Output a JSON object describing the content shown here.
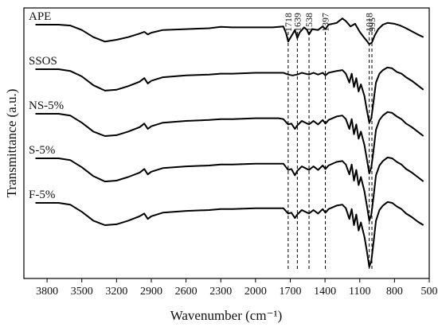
{
  "chart_data": {
    "type": "line",
    "xlabel": "Wavenumber (cm⁻¹)",
    "ylabel": "Transmittance (a.u.)",
    "xlim": [
      4000,
      500
    ],
    "x_reversed": true,
    "y_tick_labels": "none",
    "xticks": [
      3800,
      3500,
      3200,
      2900,
      2600,
      2300,
      2000,
      1700,
      1400,
      1100,
      800,
      500
    ],
    "peak_markers": [
      {
        "x": 1718,
        "label": "1718"
      },
      {
        "x": 1639,
        "label": "1639"
      },
      {
        "x": 1538,
        "label": "1538"
      },
      {
        "x": 1397,
        "label": "1397"
      },
      {
        "x": 1018,
        "label": "1018"
      },
      {
        "x": 995,
        "label": "995"
      }
    ],
    "series": [
      {
        "name": "APE",
        "offset": 4.0,
        "points": [
          [
            3900,
            0.0
          ],
          [
            3700,
            0.0
          ],
          [
            3600,
            -0.02
          ],
          [
            3500,
            -0.12
          ],
          [
            3400,
            -0.28
          ],
          [
            3300,
            -0.38
          ],
          [
            3200,
            -0.34
          ],
          [
            3100,
            -0.28
          ],
          [
            3000,
            -0.2
          ],
          [
            2960,
            -0.16
          ],
          [
            2930,
            -0.22
          ],
          [
            2900,
            -0.18
          ],
          [
            2800,
            -0.12
          ],
          [
            2600,
            -0.1
          ],
          [
            2400,
            -0.08
          ],
          [
            2300,
            -0.05
          ],
          [
            2200,
            -0.06
          ],
          [
            2000,
            -0.06
          ],
          [
            1850,
            -0.06
          ],
          [
            1760,
            -0.04
          ],
          [
            1735,
            -0.2
          ],
          [
            1718,
            -0.38
          ],
          [
            1700,
            -0.3
          ],
          [
            1660,
            -0.12
          ],
          [
            1639,
            -0.3
          ],
          [
            1620,
            -0.18
          ],
          [
            1580,
            -0.06
          ],
          [
            1555,
            -0.12
          ],
          [
            1538,
            -0.22
          ],
          [
            1510,
            -0.1
          ],
          [
            1460,
            -0.12
          ],
          [
            1420,
            -0.04
          ],
          [
            1397,
            -0.1
          ],
          [
            1370,
            0.0
          ],
          [
            1300,
            0.04
          ],
          [
            1250,
            0.14
          ],
          [
            1220,
            0.08
          ],
          [
            1180,
            -0.04
          ],
          [
            1140,
            0.02
          ],
          [
            1100,
            -0.16
          ],
          [
            1060,
            -0.3
          ],
          [
            1040,
            -0.36
          ],
          [
            1018,
            -0.44
          ],
          [
            995,
            -0.4
          ],
          [
            970,
            -0.24
          ],
          [
            940,
            -0.1
          ],
          [
            900,
            0.0
          ],
          [
            860,
            0.04
          ],
          [
            800,
            0.02
          ],
          [
            750,
            -0.02
          ],
          [
            700,
            -0.08
          ],
          [
            600,
            -0.22
          ],
          [
            550,
            -0.28
          ]
        ]
      },
      {
        "name": "SSOS",
        "offset": 3.0,
        "points": [
          [
            3900,
            0.0
          ],
          [
            3700,
            0.0
          ],
          [
            3600,
            -0.04
          ],
          [
            3500,
            -0.16
          ],
          [
            3400,
            -0.36
          ],
          [
            3300,
            -0.48
          ],
          [
            3200,
            -0.46
          ],
          [
            3100,
            -0.38
          ],
          [
            3000,
            -0.28
          ],
          [
            2960,
            -0.2
          ],
          [
            2930,
            -0.32
          ],
          [
            2900,
            -0.26
          ],
          [
            2800,
            -0.18
          ],
          [
            2600,
            -0.14
          ],
          [
            2400,
            -0.12
          ],
          [
            2300,
            -0.1
          ],
          [
            2200,
            -0.1
          ],
          [
            2000,
            -0.08
          ],
          [
            1800,
            -0.08
          ],
          [
            1760,
            -0.08
          ],
          [
            1718,
            -0.12
          ],
          [
            1680,
            -0.14
          ],
          [
            1639,
            -0.12
          ],
          [
            1600,
            -0.08
          ],
          [
            1538,
            -0.12
          ],
          [
            1500,
            -0.08
          ],
          [
            1460,
            -0.12
          ],
          [
            1420,
            -0.08
          ],
          [
            1397,
            -0.14
          ],
          [
            1370,
            -0.08
          ],
          [
            1300,
            -0.04
          ],
          [
            1250,
            -0.02
          ],
          [
            1220,
            -0.1
          ],
          [
            1190,
            -0.3
          ],
          [
            1170,
            -0.1
          ],
          [
            1150,
            -0.4
          ],
          [
            1130,
            -0.2
          ],
          [
            1110,
            -0.5
          ],
          [
            1090,
            -0.34
          ],
          [
            1060,
            -0.6
          ],
          [
            1040,
            -0.9
          ],
          [
            1018,
            -1.2
          ],
          [
            1000,
            -1.1
          ],
          [
            980,
            -0.7
          ],
          [
            960,
            -0.3
          ],
          [
            930,
            -0.1
          ],
          [
            900,
            -0.02
          ],
          [
            860,
            0.04
          ],
          [
            820,
            0.02
          ],
          [
            780,
            -0.06
          ],
          [
            740,
            -0.1
          ],
          [
            700,
            -0.18
          ],
          [
            650,
            -0.26
          ],
          [
            600,
            -0.36
          ],
          [
            550,
            -0.46
          ]
        ]
      },
      {
        "name": "NS-5%",
        "offset": 2.0,
        "points": [
          [
            3900,
            0.0
          ],
          [
            3700,
            0.0
          ],
          [
            3600,
            -0.04
          ],
          [
            3500,
            -0.2
          ],
          [
            3400,
            -0.4
          ],
          [
            3300,
            -0.5
          ],
          [
            3200,
            -0.48
          ],
          [
            3100,
            -0.4
          ],
          [
            3000,
            -0.3
          ],
          [
            2960,
            -0.22
          ],
          [
            2930,
            -0.34
          ],
          [
            2900,
            -0.28
          ],
          [
            2800,
            -0.2
          ],
          [
            2600,
            -0.16
          ],
          [
            2400,
            -0.14
          ],
          [
            2300,
            -0.12
          ],
          [
            2200,
            -0.12
          ],
          [
            2000,
            -0.1
          ],
          [
            1800,
            -0.1
          ],
          [
            1760,
            -0.12
          ],
          [
            1718,
            -0.24
          ],
          [
            1690,
            -0.22
          ],
          [
            1660,
            -0.34
          ],
          [
            1639,
            -0.26
          ],
          [
            1600,
            -0.16
          ],
          [
            1538,
            -0.24
          ],
          [
            1500,
            -0.16
          ],
          [
            1460,
            -0.24
          ],
          [
            1420,
            -0.14
          ],
          [
            1397,
            -0.22
          ],
          [
            1370,
            -0.14
          ],
          [
            1300,
            -0.06
          ],
          [
            1250,
            -0.04
          ],
          [
            1220,
            -0.12
          ],
          [
            1190,
            -0.34
          ],
          [
            1170,
            -0.12
          ],
          [
            1150,
            -0.46
          ],
          [
            1130,
            -0.24
          ],
          [
            1110,
            -0.56
          ],
          [
            1090,
            -0.4
          ],
          [
            1060,
            -0.7
          ],
          [
            1040,
            -1.0
          ],
          [
            1018,
            -1.34
          ],
          [
            1000,
            -1.2
          ],
          [
            980,
            -0.8
          ],
          [
            960,
            -0.36
          ],
          [
            930,
            -0.14
          ],
          [
            900,
            -0.04
          ],
          [
            860,
            0.04
          ],
          [
            820,
            0.02
          ],
          [
            780,
            -0.06
          ],
          [
            740,
            -0.12
          ],
          [
            700,
            -0.22
          ],
          [
            650,
            -0.3
          ],
          [
            600,
            -0.4
          ],
          [
            550,
            -0.5
          ]
        ]
      },
      {
        "name": "S-5%",
        "offset": 1.0,
        "points": [
          [
            3900,
            0.0
          ],
          [
            3700,
            0.0
          ],
          [
            3600,
            -0.04
          ],
          [
            3500,
            -0.2
          ],
          [
            3400,
            -0.4
          ],
          [
            3300,
            -0.52
          ],
          [
            3200,
            -0.5
          ],
          [
            3100,
            -0.42
          ],
          [
            3000,
            -0.32
          ],
          [
            2960,
            -0.24
          ],
          [
            2930,
            -0.36
          ],
          [
            2900,
            -0.3
          ],
          [
            2800,
            -0.22
          ],
          [
            2600,
            -0.18
          ],
          [
            2400,
            -0.16
          ],
          [
            2300,
            -0.14
          ],
          [
            2200,
            -0.14
          ],
          [
            2000,
            -0.12
          ],
          [
            1800,
            -0.12
          ],
          [
            1760,
            -0.12
          ],
          [
            1718,
            -0.26
          ],
          [
            1690,
            -0.24
          ],
          [
            1660,
            -0.38
          ],
          [
            1639,
            -0.28
          ],
          [
            1600,
            -0.18
          ],
          [
            1538,
            -0.26
          ],
          [
            1500,
            -0.18
          ],
          [
            1460,
            -0.26
          ],
          [
            1420,
            -0.16
          ],
          [
            1397,
            -0.24
          ],
          [
            1370,
            -0.16
          ],
          [
            1300,
            -0.08
          ],
          [
            1250,
            -0.06
          ],
          [
            1220,
            -0.14
          ],
          [
            1190,
            -0.36
          ],
          [
            1170,
            -0.14
          ],
          [
            1150,
            -0.5
          ],
          [
            1130,
            -0.26
          ],
          [
            1110,
            -0.6
          ],
          [
            1090,
            -0.42
          ],
          [
            1060,
            -0.74
          ],
          [
            1040,
            -1.04
          ],
          [
            1018,
            -1.4
          ],
          [
            1000,
            -1.26
          ],
          [
            980,
            -0.84
          ],
          [
            960,
            -0.38
          ],
          [
            930,
            -0.16
          ],
          [
            900,
            -0.06
          ],
          [
            860,
            0.02
          ],
          [
            820,
            0.0
          ],
          [
            780,
            -0.08
          ],
          [
            740,
            -0.14
          ],
          [
            700,
            -0.24
          ],
          [
            650,
            -0.32
          ],
          [
            600,
            -0.42
          ],
          [
            550,
            -0.52
          ]
        ]
      },
      {
        "name": "F-5%",
        "offset": 0.0,
        "points": [
          [
            3900,
            0.0
          ],
          [
            3700,
            0.0
          ],
          [
            3600,
            -0.04
          ],
          [
            3500,
            -0.2
          ],
          [
            3400,
            -0.4
          ],
          [
            3300,
            -0.5
          ],
          [
            3200,
            -0.48
          ],
          [
            3100,
            -0.4
          ],
          [
            3000,
            -0.3
          ],
          [
            2960,
            -0.24
          ],
          [
            2930,
            -0.36
          ],
          [
            2900,
            -0.3
          ],
          [
            2800,
            -0.22
          ],
          [
            2600,
            -0.18
          ],
          [
            2400,
            -0.16
          ],
          [
            2300,
            -0.14
          ],
          [
            2200,
            -0.14
          ],
          [
            2000,
            -0.12
          ],
          [
            1800,
            -0.12
          ],
          [
            1760,
            -0.12
          ],
          [
            1718,
            -0.24
          ],
          [
            1690,
            -0.22
          ],
          [
            1660,
            -0.34
          ],
          [
            1639,
            -0.26
          ],
          [
            1600,
            -0.16
          ],
          [
            1538,
            -0.24
          ],
          [
            1500,
            -0.16
          ],
          [
            1460,
            -0.24
          ],
          [
            1420,
            -0.14
          ],
          [
            1397,
            -0.22
          ],
          [
            1370,
            -0.14
          ],
          [
            1300,
            -0.06
          ],
          [
            1250,
            -0.04
          ],
          [
            1220,
            -0.12
          ],
          [
            1190,
            -0.36
          ],
          [
            1170,
            -0.14
          ],
          [
            1150,
            -0.5
          ],
          [
            1130,
            -0.26
          ],
          [
            1110,
            -0.62
          ],
          [
            1090,
            -0.44
          ],
          [
            1060,
            -0.76
          ],
          [
            1040,
            -1.06
          ],
          [
            1018,
            -1.44
          ],
          [
            1000,
            -1.3
          ],
          [
            980,
            -0.86
          ],
          [
            960,
            -0.4
          ],
          [
            930,
            -0.16
          ],
          [
            900,
            -0.06
          ],
          [
            860,
            0.02
          ],
          [
            820,
            0.0
          ],
          [
            780,
            -0.08
          ],
          [
            740,
            -0.14
          ],
          [
            700,
            -0.24
          ],
          [
            650,
            -0.32
          ],
          [
            600,
            -0.42
          ],
          [
            550,
            -0.5
          ]
        ]
      }
    ]
  }
}
